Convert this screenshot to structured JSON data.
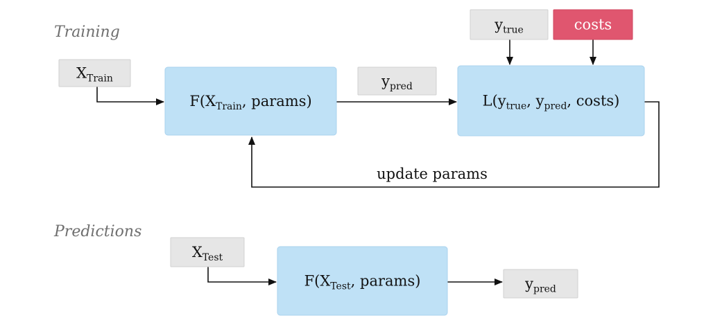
{
  "sections": [
    "Training",
    "Predictions"
  ],
  "nodes": [
    {
      "kind": "data",
      "label": [
        "X",
        "Train"
      ]
    },
    {
      "kind": "model",
      "label": [
        "F(X",
        "Train",
        ", params)"
      ]
    },
    {
      "kind": "data",
      "label": [
        "y",
        "pred"
      ]
    },
    {
      "kind": "data",
      "label": [
        "y",
        "true"
      ]
    },
    {
      "kind": "highlight",
      "label": [
        "costs"
      ]
    },
    {
      "kind": "model",
      "label": [
        "L(y",
        "true",
        ", y",
        "pred",
        ", costs)"
      ]
    },
    {
      "kind": "data",
      "label": [
        "X",
        "Test"
      ]
    },
    {
      "kind": "model",
      "label": [
        "F(X",
        "Test",
        ", params)"
      ]
    },
    {
      "kind": "data",
      "label": [
        "y",
        "pred"
      ]
    }
  ],
  "edge_labels": [
    "update params"
  ]
}
